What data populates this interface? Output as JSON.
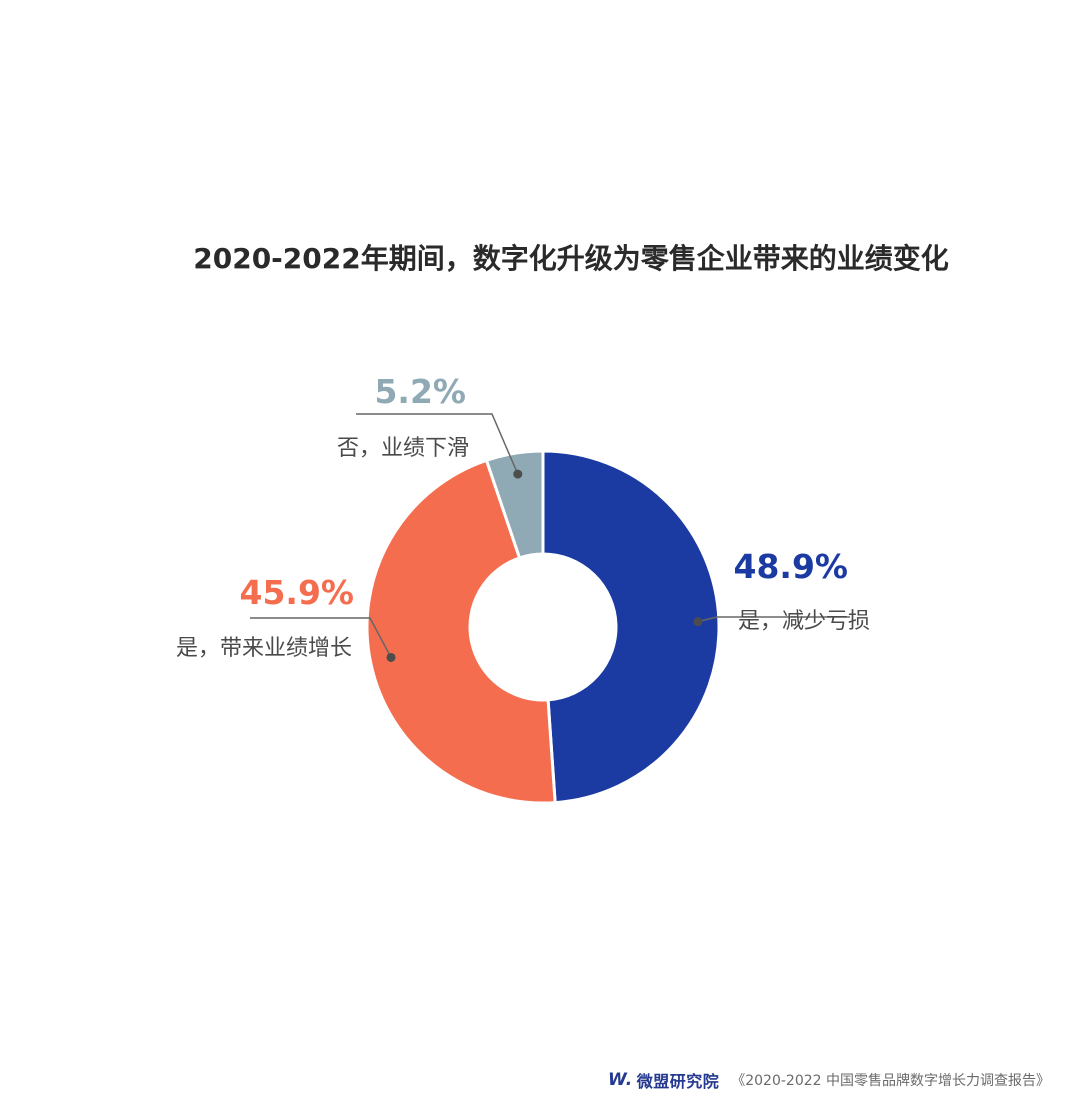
{
  "colors": {
    "title": "#2a2a2a",
    "label": "#4a4a4a",
    "line": "#666666",
    "brand": "#24398f"
  },
  "chart_data": {
    "type": "pie",
    "title": "2020-2022年期间，数字化升级为零售企业带来的业绩变化",
    "slices": [
      {
        "label": "是，减少亏损",
        "value": 48.9,
        "display": "48.9%",
        "color": "#1b3ba3"
      },
      {
        "label": "是，带来业绩增长",
        "value": 45.9,
        "display": "45.9%",
        "color": "#f46d4f"
      },
      {
        "label": "否，业绩下滑",
        "value": 5.2,
        "display": "5.2%",
        "color": "#8fa9b5"
      }
    ]
  },
  "footer": {
    "brand_mark": "W.",
    "brand_name": "微盟研究院",
    "source": "《2020-2022 中国零售品牌数字增长力调查报告》"
  }
}
